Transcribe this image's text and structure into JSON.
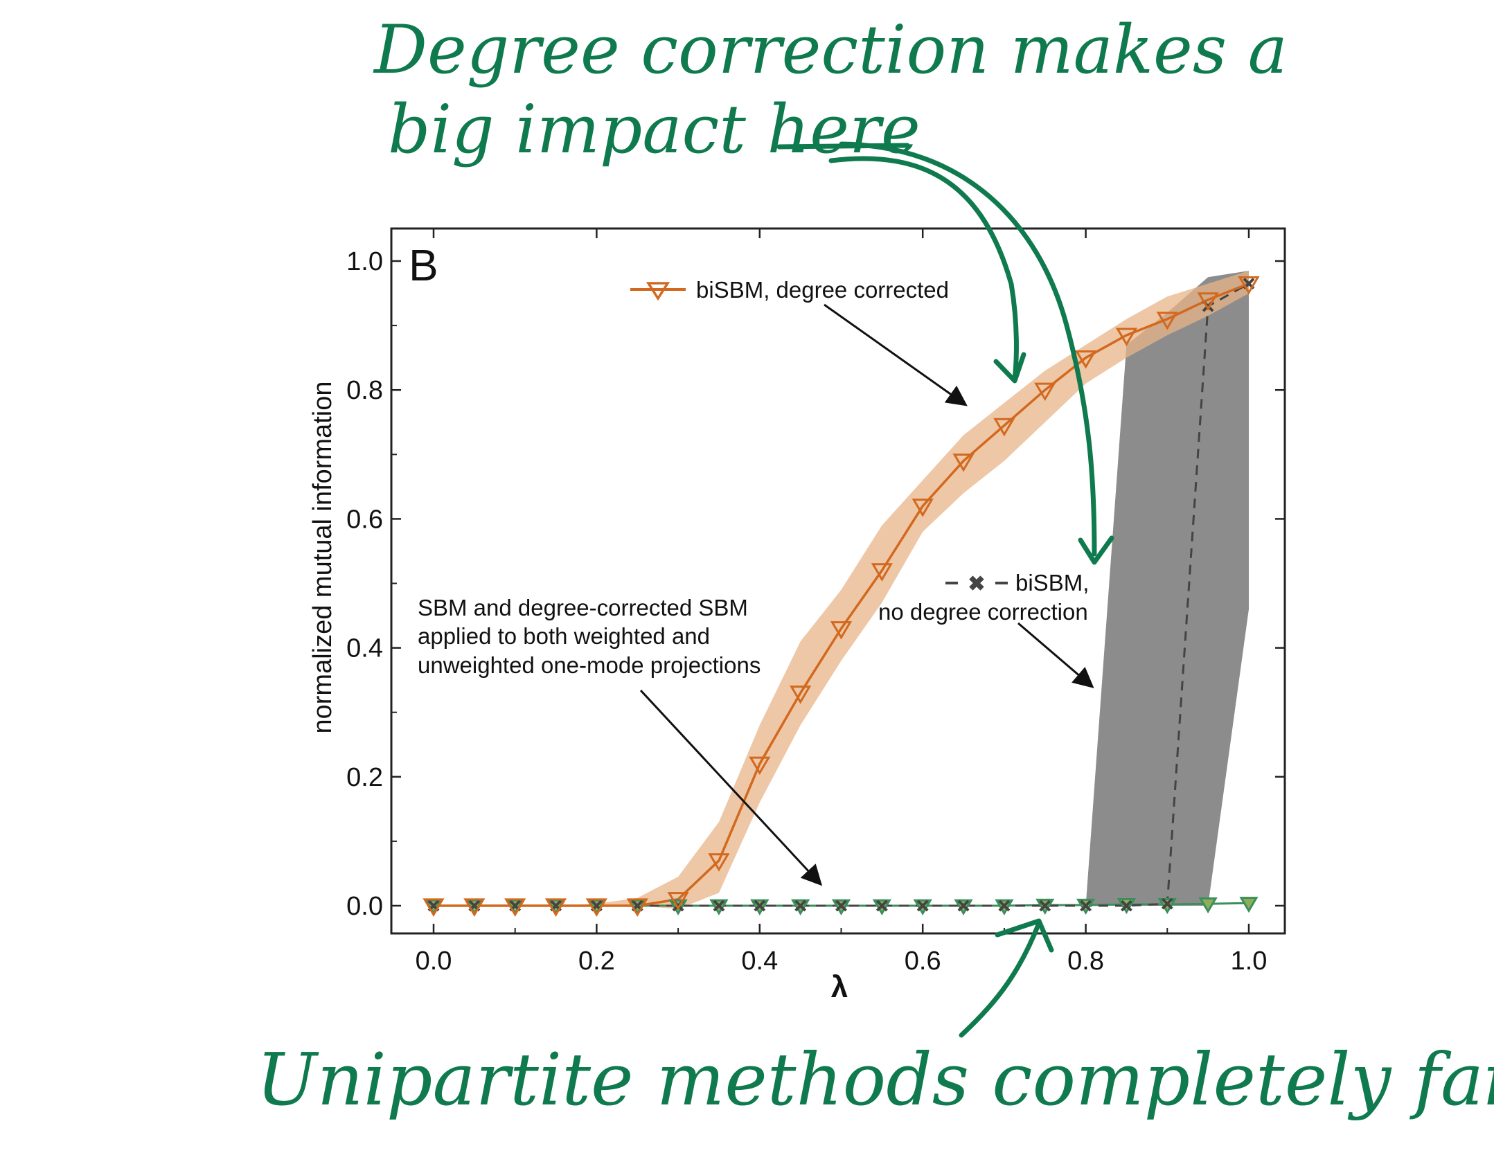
{
  "chart_data": {
    "type": "line",
    "panel_label": "B",
    "xlabel": "λ",
    "ylabel": "normalized mutual information",
    "xlim": [
      0.0,
      1.0
    ],
    "ylim": [
      -0.05,
      1.05
    ],
    "x_ticks": [
      "0.0",
      "0.2",
      "0.4",
      "0.6",
      "0.8",
      "1.0"
    ],
    "y_ticks": [
      "0.0",
      "0.2",
      "0.4",
      "0.6",
      "0.8",
      "1.0"
    ],
    "x": [
      0.0,
      0.05,
      0.1,
      0.15,
      0.2,
      0.25,
      0.3,
      0.35,
      0.4,
      0.45,
      0.5,
      0.55,
      0.6,
      0.65,
      0.7,
      0.75,
      0.8,
      0.85,
      0.9,
      0.95,
      1.0
    ],
    "grid": false,
    "series": [
      {
        "name": "biSBM, degree corrected",
        "color": "#d2691e",
        "band_color": "#e8b48a",
        "marker": "triangle-down",
        "values": [
          0.0,
          0.0,
          0.0,
          0.0,
          0.0,
          0.0,
          0.01,
          0.07,
          0.22,
          0.33,
          0.43,
          0.52,
          0.62,
          0.69,
          0.745,
          0.8,
          0.85,
          0.885,
          0.91,
          0.94,
          0.965
        ],
        "band_low": [
          0.0,
          0.0,
          0.0,
          0.0,
          0.0,
          0.0,
          -0.005,
          0.02,
          0.16,
          0.28,
          0.38,
          0.47,
          0.58,
          0.64,
          0.69,
          0.75,
          0.81,
          0.85,
          0.885,
          0.915,
          0.95
        ],
        "band_high": [
          0.0,
          0.0,
          0.0,
          0.0,
          0.003,
          0.012,
          0.045,
          0.13,
          0.28,
          0.41,
          0.49,
          0.59,
          0.66,
          0.73,
          0.78,
          0.83,
          0.87,
          0.91,
          0.945,
          0.965,
          0.985
        ]
      },
      {
        "name": "biSBM, no degree correction",
        "color": "#444444",
        "band_color": "#808080",
        "marker": "x",
        "dashed": true,
        "values": [
          0.0,
          0.0,
          0.0,
          0.0,
          0.0,
          0.0,
          0.0,
          0.0,
          0.0,
          0.0,
          0.0,
          0.0,
          0.0,
          0.0,
          0.0,
          0.0,
          0.0,
          0.0,
          0.003,
          0.93,
          0.965
        ],
        "band_low": [
          0.0,
          0.0,
          0.0,
          0.0,
          0.0,
          0.0,
          0.0,
          0.0,
          0.0,
          0.0,
          0.0,
          0.0,
          0.0,
          0.0,
          0.0,
          0.0,
          0.0,
          0.0,
          0.0,
          0.0,
          0.46
        ],
        "band_high": [
          0.0,
          0.0,
          0.0,
          0.0,
          0.0,
          0.0,
          0.0,
          0.0,
          0.0,
          0.0,
          0.0,
          0.0,
          0.0,
          0.0,
          0.0,
          0.0,
          0.0,
          0.87,
          0.92,
          0.975,
          0.985
        ]
      },
      {
        "name": "SBM and degree-corrected SBM applied to both weighted and unweighted one-mode projections",
        "color": "#3a8f5a",
        "marker": "triangle-down",
        "values": [
          0.0,
          0.0,
          0.0,
          0.0,
          0.0,
          0.0,
          0.0,
          0.0,
          0.0,
          0.0,
          0.0,
          0.0,
          0.0,
          0.0,
          0.0,
          0.001,
          0.001,
          0.002,
          0.002,
          0.003,
          0.004
        ]
      }
    ],
    "annotations": {
      "legend_bisbm_dc": "biSBM, degree corrected",
      "label_bisbm_ndc_1": "biSBM,",
      "label_bisbm_ndc_2": "no degree correction",
      "label_sbm_1": "SBM and degree-corrected SBM",
      "label_sbm_2": "applied to both weighted and",
      "label_sbm_3": "unweighted one-mode projections"
    }
  },
  "handwriting": {
    "color": "#0f7a4e",
    "top_line_1": "Degree correction makes a",
    "top_line_2": "big impact here",
    "bottom": "Unipartite methods completely fail"
  }
}
